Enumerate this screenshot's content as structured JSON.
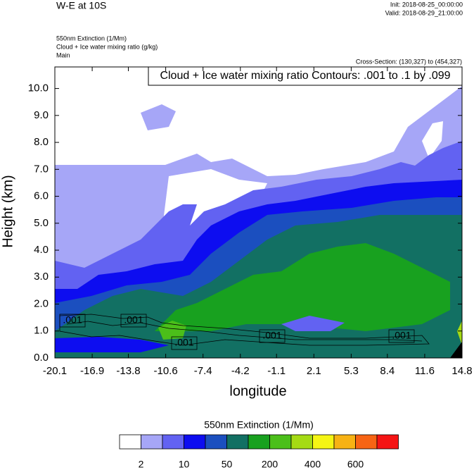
{
  "header": {
    "title": "W-E at 10S",
    "init": "Init: 2018-08-25_00:00:00",
    "valid": "Valid: 2018-08-29_21:00:00",
    "subtitles": [
      "550nm Extinction   (1/Mm)",
      "Cloud + Ice water mixing ratio   (g/kg)",
      "Main"
    ],
    "cross_section": "Cross-Section: (130,327) to (454,327)"
  },
  "chart_data": {
    "type": "contour",
    "x_label": "longitude",
    "y_label": "Height (km)",
    "contour_note": "Cloud + Ice water mixing ratio Contours: .001 to .1 by .099",
    "contour_labels": [
      ".001",
      ".001",
      ".001",
      ".001",
      ".001"
    ],
    "xlim": [
      -20.1,
      14.8
    ],
    "xticks": [
      -20.1,
      -16.9,
      -13.8,
      -10.6,
      -7.4,
      -4.2,
      -1.1,
      2.1,
      5.3,
      8.4,
      11.6,
      14.8
    ],
    "ylim": [
      0,
      10.8
    ],
    "yticks": [
      {
        "value": 0,
        "label": "0.0"
      },
      {
        "value": 1,
        "label": "1.0"
      },
      {
        "value": 2,
        "label": "2.0"
      },
      {
        "value": 3,
        "label": "3.0"
      },
      {
        "value": 4,
        "label": "4.0"
      },
      {
        "value": 5,
        "label": "5.0"
      },
      {
        "value": 6,
        "label": "6.0"
      },
      {
        "value": 7,
        "label": "7.0"
      },
      {
        "value": 8,
        "label": "8.0"
      },
      {
        "value": 9,
        "label": "9.0"
      },
      {
        "value": 10,
        "label": "10.0"
      }
    ],
    "colorbar": {
      "title": "550nm Extinction  (1/Mm)",
      "colors": [
        "#ffffff",
        "#a6a6f7",
        "#6262f2",
        "#0d0df0",
        "#1b4fbf",
        "#127063",
        "#18a11f",
        "#4bbf1a",
        "#a5db14",
        "#f5f514",
        "#f7b214",
        "#f76414",
        "#f51414"
      ],
      "labels": [
        2,
        10,
        50,
        200,
        400,
        600
      ]
    }
  }
}
